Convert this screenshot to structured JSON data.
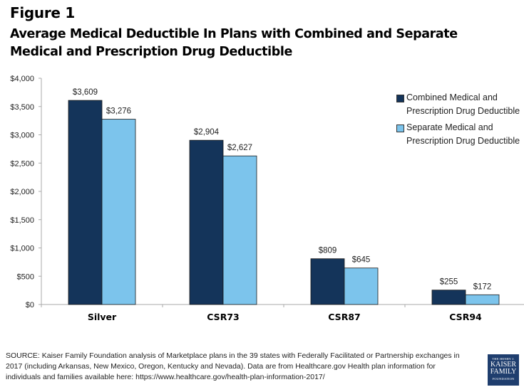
{
  "figure_label": "Figure 1",
  "title": "Average Medical Deductible In Plans with Combined and Separate Medical and Prescription Drug Deductible",
  "colors": {
    "combined": "#14345a",
    "separate": "#7cc4ec",
    "axis": "#aaaaaa",
    "logo_bg": "#1f3e6e"
  },
  "chart_data": {
    "type": "bar",
    "title": "Average Medical Deductible In Plans with Combined and Separate Medical and Prescription Drug Deductible",
    "xlabel": "",
    "ylabel": "",
    "categories": [
      "Silver",
      "CSR73",
      "CSR87",
      "CSR94"
    ],
    "series": [
      {
        "name": "Combined Medical and Prescription Drug Deductible",
        "values": [
          3609,
          2904,
          809,
          255
        ],
        "labels": [
          "$3,609",
          "$2,904",
          "$809",
          "$255"
        ]
      },
      {
        "name": "Separate Medical and Prescription Drug Deductible",
        "values": [
          3276,
          2627,
          645,
          172
        ],
        "labels": [
          "$3,276",
          "$2,627",
          "$645",
          "$172"
        ]
      }
    ],
    "ylim": [
      0,
      4000
    ],
    "yticks": [
      0,
      500,
      1000,
      1500,
      2000,
      2500,
      3000,
      3500,
      4000
    ],
    "ytick_labels": [
      "$0",
      "$500",
      "$1,000",
      "$1,500",
      "$2,000",
      "$2,500",
      "$3,000",
      "$3,500",
      "$4,000"
    ],
    "grid": false,
    "legend_position": "top-right"
  },
  "legend": [
    {
      "label": "Combined Medical and Prescription Drug Deductible"
    },
    {
      "label": "Separate Medical and Prescription Drug Deductible"
    }
  ],
  "source": "SOURCE: Kaiser Family Foundation analysis of Marketplace plans in the 39 states with Federally Facilitated or Partnership exchanges in 2017 (including Arkansas, New Mexico, Oregon, Kentucky and Nevada).  Data are from Healthcare.gov Health plan information for individuals and families available here: https://www.healthcare.gov/health-plan-information-2017/",
  "logo": {
    "line1": "THE HENRY J.",
    "line2": "KAISER",
    "line3": "FAMILY",
    "line4": "FOUNDATION"
  }
}
